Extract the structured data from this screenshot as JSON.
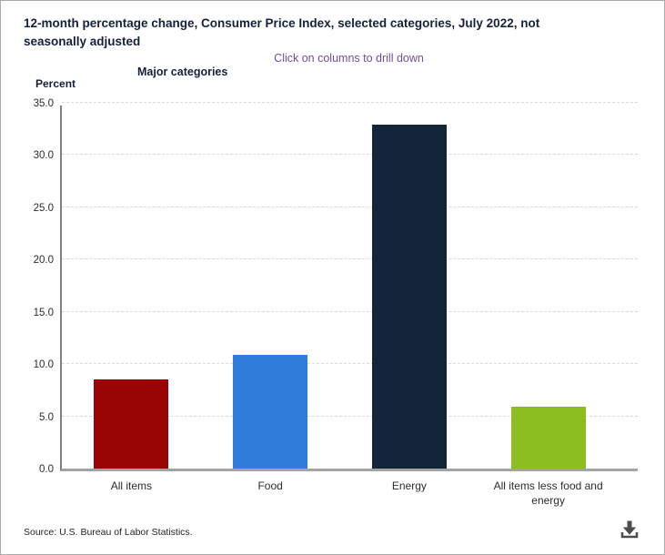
{
  "header": {
    "title": "12-month percentage change, Consumer Price Index, selected categories, July 2022, not seasonally adjusted",
    "subtitle": "Click on columns to drill down",
    "subtitle_color": "#6e4f9b"
  },
  "chart_data": {
    "type": "bar",
    "title": "Major categories",
    "categories": [
      "All items",
      "Food",
      "Energy",
      "All items less food and energy"
    ],
    "values": [
      8.5,
      10.9,
      32.9,
      5.9
    ],
    "bar_colors": [
      "#990505",
      "#2f7cdb",
      "#132639",
      "#8cbe22"
    ],
    "ylabel": "Percent",
    "xlabel": "",
    "ylim": [
      0,
      35
    ],
    "ytick_step": 5,
    "ytick_labels": [
      "0.0",
      "5.0",
      "10.0",
      "15.0",
      "20.0",
      "25.0",
      "30.0",
      "35.0"
    ],
    "grid": "horizontal-dashed",
    "legend": "none"
  },
  "footer": {
    "source": "Source: U.S. Bureau of Labor Statistics.",
    "download_icon": "download-icon",
    "icon_color": "#4d4d4d"
  }
}
